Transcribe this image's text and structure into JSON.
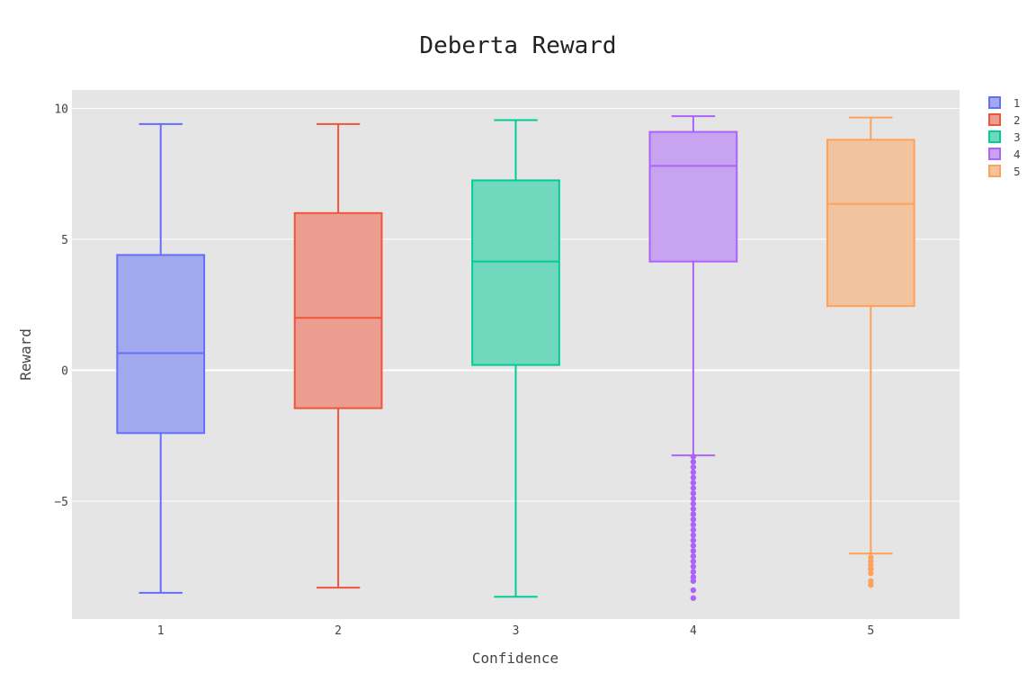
{
  "chart_data": {
    "type": "box",
    "title": "Deberta Reward",
    "xlabel": "Confidence",
    "ylabel": "Reward",
    "ylim": [
      -9.5,
      10.7
    ],
    "yticks": [
      10,
      5,
      0,
      -5
    ],
    "ytick_labels": [
      "10",
      "5",
      "0",
      "−5"
    ],
    "grid": true,
    "legend_position": "top-right",
    "categories": [
      "1",
      "2",
      "3",
      "4",
      "5"
    ],
    "series": [
      {
        "name": "1",
        "color": "#636efa",
        "fill": "#a2a9ef",
        "q1": -2.4,
        "median": 0.65,
        "q3": 4.4,
        "lower_whisker": -8.5,
        "upper_whisker": 9.4,
        "outliers": []
      },
      {
        "name": "2",
        "color": "#ef553b",
        "fill": "#eb9e8f",
        "q1": -1.45,
        "median": 2.0,
        "q3": 6.0,
        "lower_whisker": -8.3,
        "upper_whisker": 9.4,
        "outliers": []
      },
      {
        "name": "3",
        "color": "#00cc96",
        "fill": "#6fd8bd",
        "q1": 0.2,
        "median": 4.15,
        "q3": 7.25,
        "lower_whisker": -8.65,
        "upper_whisker": 9.55,
        "outliers": []
      },
      {
        "name": "4",
        "color": "#ab63fa",
        "fill": "#c8a3f0",
        "q1": 4.15,
        "median": 7.8,
        "q3": 9.1,
        "lower_whisker": -3.25,
        "upper_whisker": 9.7,
        "outliers": [
          -3.3,
          -3.5,
          -3.7,
          -3.9,
          -4.1,
          -4.3,
          -4.5,
          -4.7,
          -4.9,
          -5.1,
          -5.3,
          -5.5,
          -5.7,
          -5.9,
          -6.1,
          -6.3,
          -6.5,
          -6.7,
          -6.9,
          -7.1,
          -7.3,
          -7.5,
          -7.7,
          -7.9,
          -8.05,
          -8.4,
          -8.7
        ]
      },
      {
        "name": "5",
        "color": "#ffa15a",
        "fill": "#f2c39f",
        "q1": 2.45,
        "median": 6.35,
        "q3": 8.8,
        "lower_whisker": -7.0,
        "upper_whisker": 9.65,
        "outliers": [
          -7.15,
          -7.3,
          -7.45,
          -7.6,
          -7.75,
          -8.05,
          -8.2
        ]
      }
    ]
  }
}
